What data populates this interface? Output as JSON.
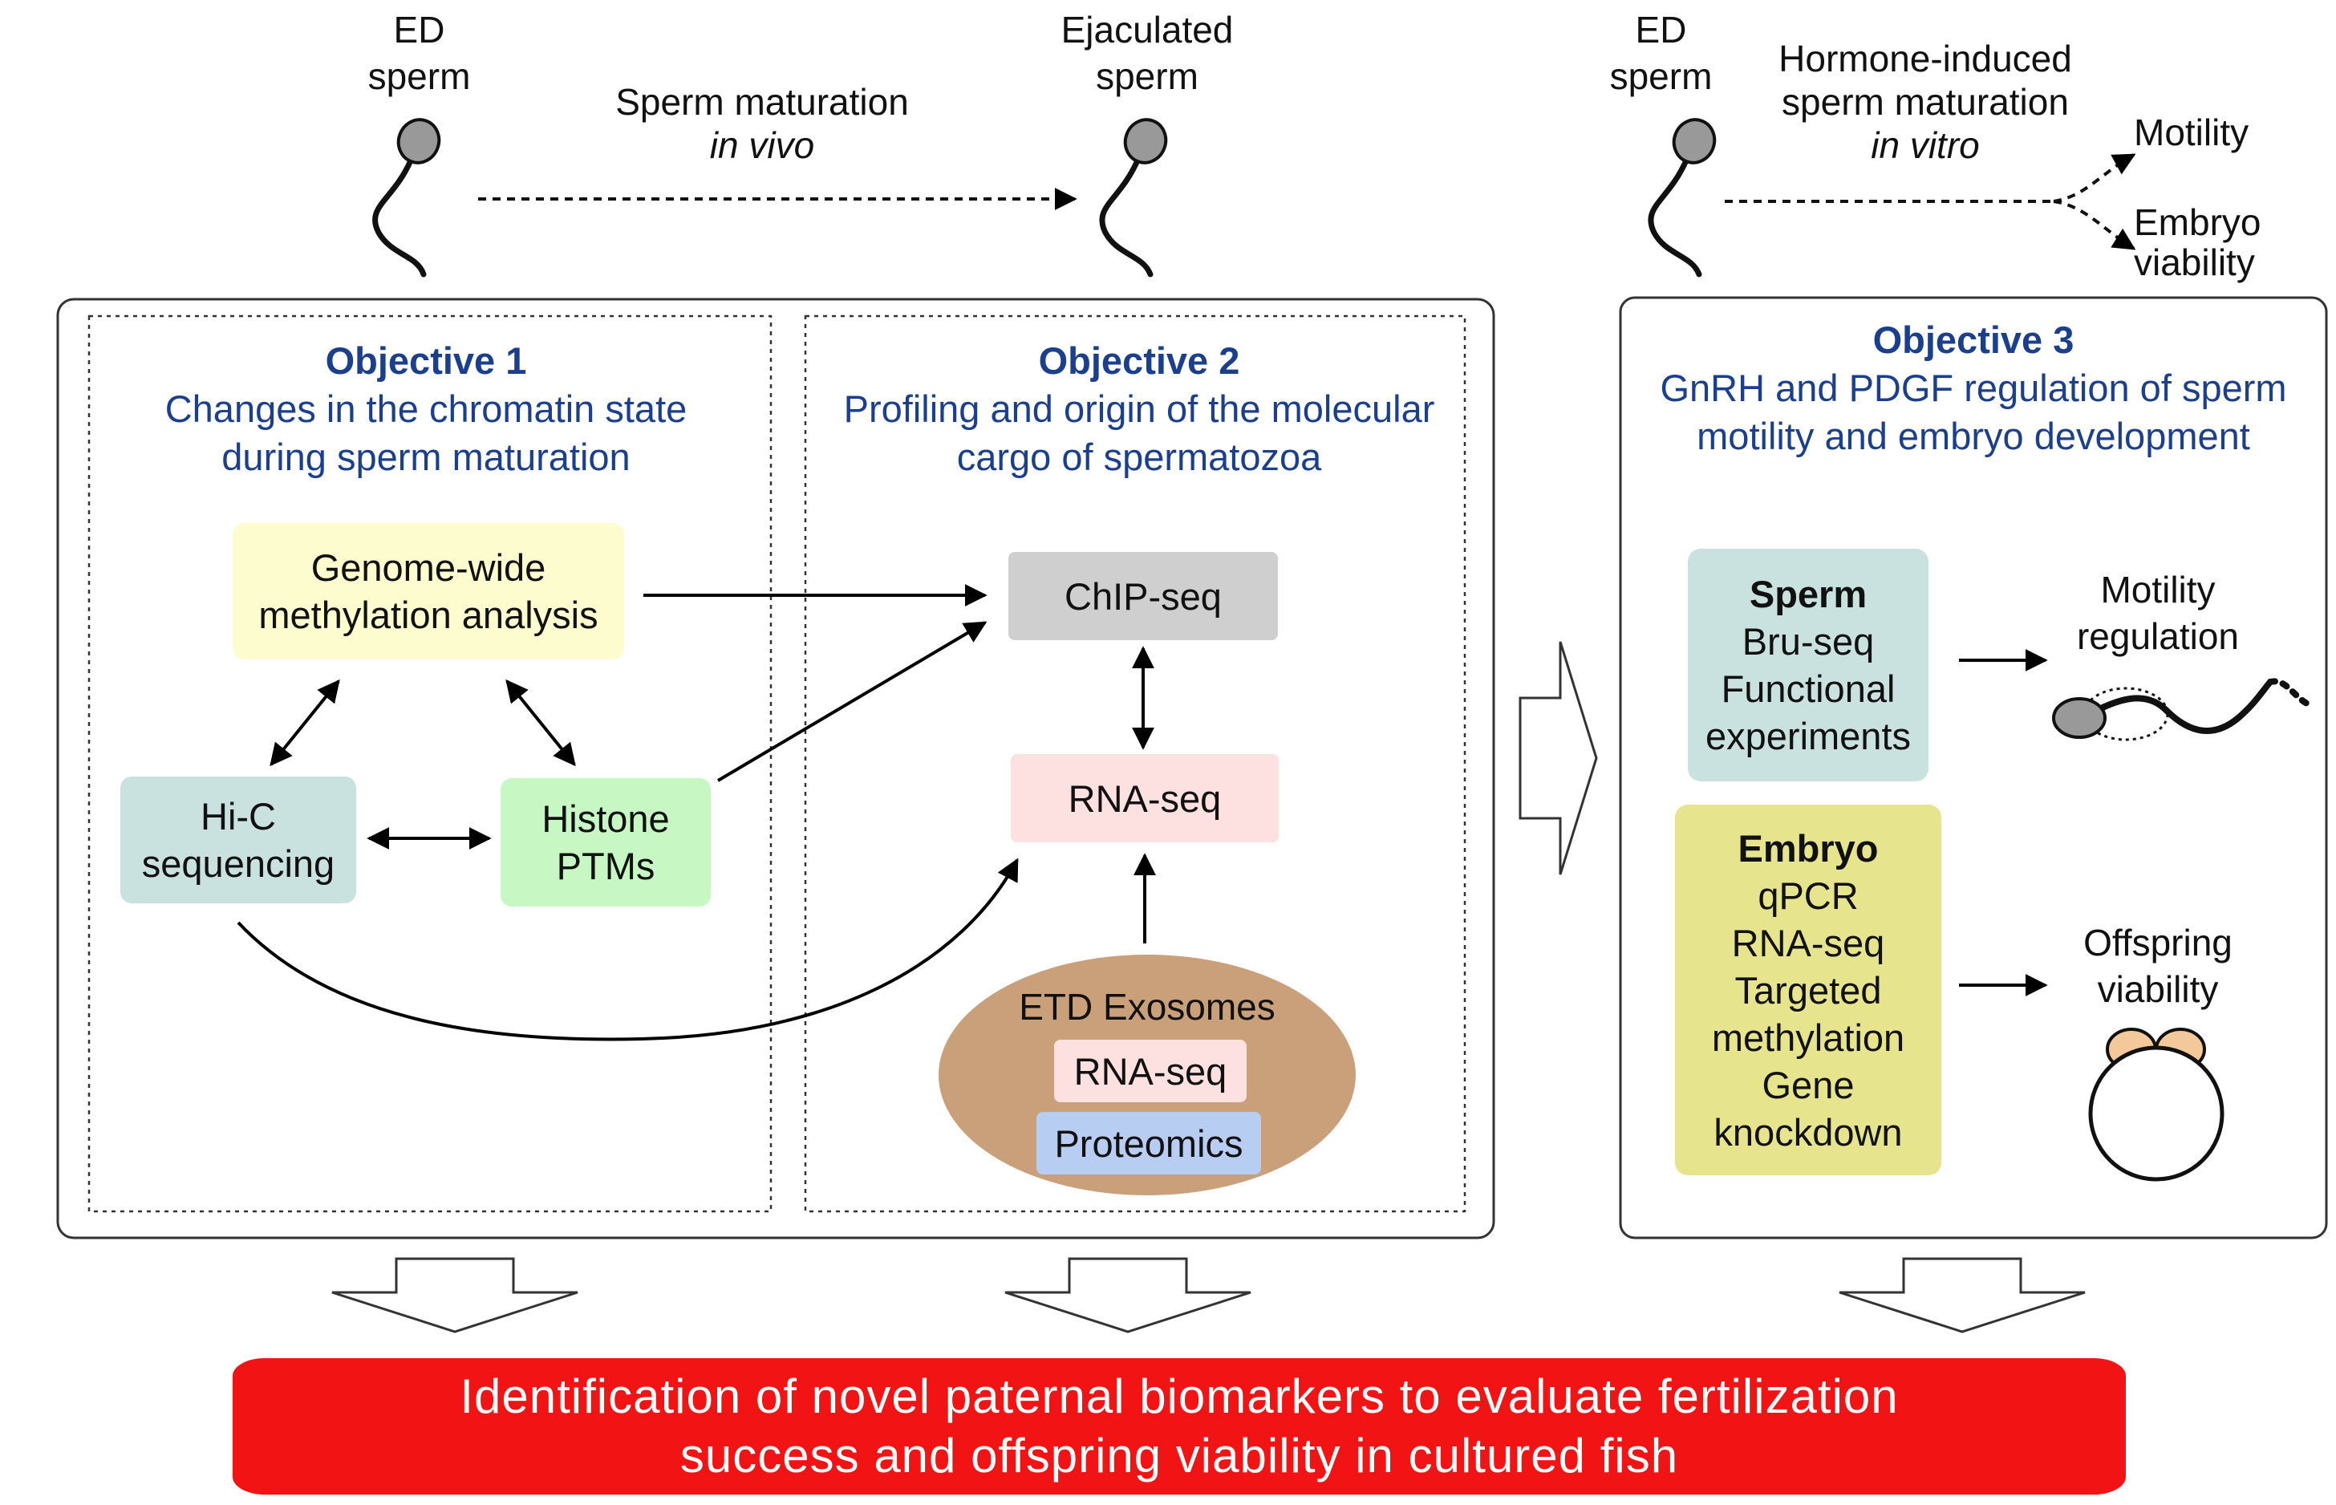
{
  "top": {
    "ed_sperm_left": [
      "ED",
      "sperm"
    ],
    "ejaculated_sperm": [
      "Ejaculated",
      "sperm"
    ],
    "ed_sperm_right": [
      "ED",
      "sperm"
    ],
    "in_vivo_line1": "Sperm maturation",
    "in_vivo_line2": "in vivo",
    "in_vitro_line1": "Hormone-induced",
    "in_vitro_line2": "sperm maturation",
    "in_vitro_line3": "in vitro",
    "motility": "Motility",
    "embryo_viability": [
      "Embryo",
      "viability"
    ]
  },
  "objective1": {
    "title": "Objective 1",
    "subtitle": [
      "Changes in the chromatin state",
      "during sperm maturation"
    ],
    "methylation": [
      "Genome-wide",
      "methylation analysis"
    ],
    "hic": [
      "Hi-C",
      "sequencing"
    ],
    "histone": [
      "Histone",
      "PTMs"
    ]
  },
  "objective2": {
    "title": "Objective 2",
    "subtitle": [
      "Profiling and origin of the molecular",
      "cargo of spermatozoa"
    ],
    "chipseq": "ChIP-seq",
    "rnaseq": "RNA-seq",
    "exosomes": "ETD Exosomes",
    "exo_rnaseq": "RNA-seq",
    "proteomics": "Proteomics"
  },
  "objective3": {
    "title": "Objective 3",
    "subtitle": [
      "GnRH and PDGF regulation of sperm",
      "motility and embryo development"
    ],
    "sperm_box": [
      "Sperm",
      "Bru-seq",
      "Functional",
      "experiments"
    ],
    "embryo_box": [
      "Embryo",
      "qPCR",
      "RNA-seq",
      "Targeted",
      "methylation",
      "Gene",
      "knockdown"
    ],
    "motility_regulation": [
      "Motility",
      "regulation"
    ],
    "offspring_viability": [
      "Offspring",
      "viability"
    ]
  },
  "banner": [
    "Identification of novel paternal biomarkers to evaluate fertilization",
    "success and offspring viability in cultured fish"
  ],
  "colors": {
    "title_blue": "#1b3f8f",
    "methylation": "#fdfccf",
    "hic": "#c9e2e0",
    "histone": "#c7f7c2",
    "chipseq": "#cfcfcf",
    "rnaseq": "#fde0e0",
    "exosomes": "#c9a07a",
    "proteomics": "#b8cdf2",
    "sperm_box": "#c9e2e0",
    "embryo_box": "#e6e48c",
    "banner": "#f21414"
  }
}
